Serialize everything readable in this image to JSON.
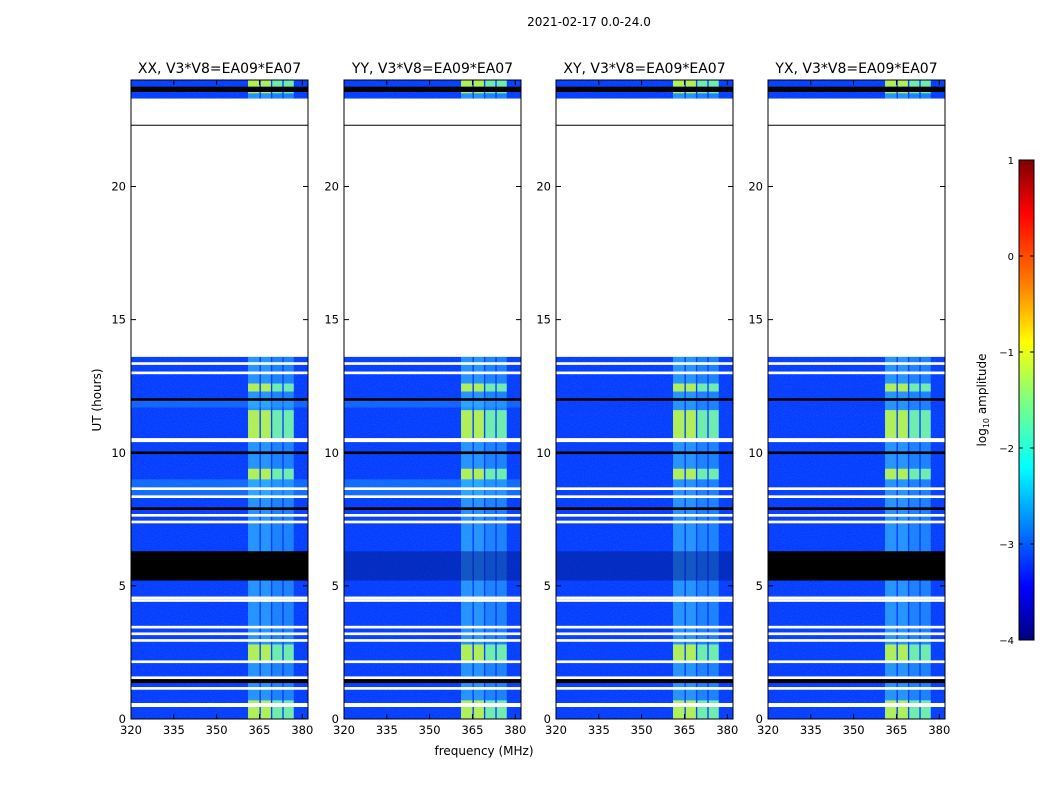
{
  "suptitle": "2021-02-17 0.0-24.0",
  "chart_data": {
    "type": "heatmap",
    "suptitle": "2021-02-17 0.0-24.0",
    "xlabel": "frequency (MHz)",
    "ylabel": "UT (hours)",
    "xlim": [
      320,
      382
    ],
    "ylim": [
      0,
      24
    ],
    "xticks": [
      320,
      335,
      350,
      365,
      380
    ],
    "yticks": [
      0,
      5,
      10,
      15,
      20
    ],
    "colorbar": {
      "label": "log10 amplitude",
      "label_main": "log",
      "label_sub": "10",
      "label_rest": " amplitude",
      "range": [
        -4,
        1
      ],
      "ticks": [
        1,
        0,
        -1,
        -2,
        -3,
        -4
      ],
      "tick_labels": [
        "1",
        "0",
        "−1",
        "−2",
        "−3",
        "−4"
      ],
      "colors": [
        "#00007f",
        "#0000ff",
        "#007fff",
        "#00ffff",
        "#7fff7f",
        "#ffff00",
        "#ff7f00",
        "#ff0000",
        "#7f0000"
      ]
    },
    "panels": [
      {
        "title": "XX, V3*V8=EA09*EA07",
        "variant": "XX"
      },
      {
        "title": "YY, V3*V8=EA09*EA07",
        "variant": "YY"
      },
      {
        "title": "XY, V3*V8=EA09*EA07",
        "variant": "XY"
      },
      {
        "title": "YX, V3*V8=EA09*EA07",
        "variant": "YX"
      }
    ],
    "data_bands_ut": [
      [
        0.0,
        1.4
      ],
      [
        1.6,
        13.6
      ],
      [
        23.3,
        24.0
      ]
    ],
    "empty_band_ut": [
      13.6,
      22.3
    ],
    "gap_bands_ut": [
      [
        0.45,
        0.6
      ],
      [
        1.1,
        1.2
      ],
      [
        2.1,
        2.2
      ],
      [
        2.9,
        3.0
      ],
      [
        3.15,
        3.25
      ],
      [
        3.4,
        3.5
      ],
      [
        4.4,
        4.5
      ],
      [
        4.5,
        4.6
      ],
      [
        7.35,
        7.45
      ],
      [
        7.6,
        7.7
      ],
      [
        8.3,
        8.4
      ],
      [
        8.6,
        8.7
      ],
      [
        10.4,
        10.55
      ],
      [
        12.95,
        13.05
      ],
      [
        13.3,
        13.4
      ],
      [
        22.3,
        23.3
      ]
    ],
    "dark_bands_ut": [
      [
        1.35,
        1.5
      ],
      [
        5.2,
        6.3
      ],
      [
        11.95,
        12.05
      ],
      [
        7.85,
        7.95
      ],
      [
        9.95,
        10.05
      ],
      [
        23.55,
        23.75
      ]
    ],
    "bright_channels_mhz": [
      [
        361,
        365
      ],
      [
        365.5,
        369
      ],
      [
        369.5,
        373
      ],
      [
        373.5,
        377
      ]
    ],
    "bright_intervals_ut": [
      [
        0.0,
        0.7
      ],
      [
        2.2,
        2.8
      ],
      [
        9.0,
        9.4
      ],
      [
        10.5,
        11.6
      ],
      [
        12.3,
        12.6
      ],
      [
        23.5,
        24.0
      ]
    ]
  }
}
